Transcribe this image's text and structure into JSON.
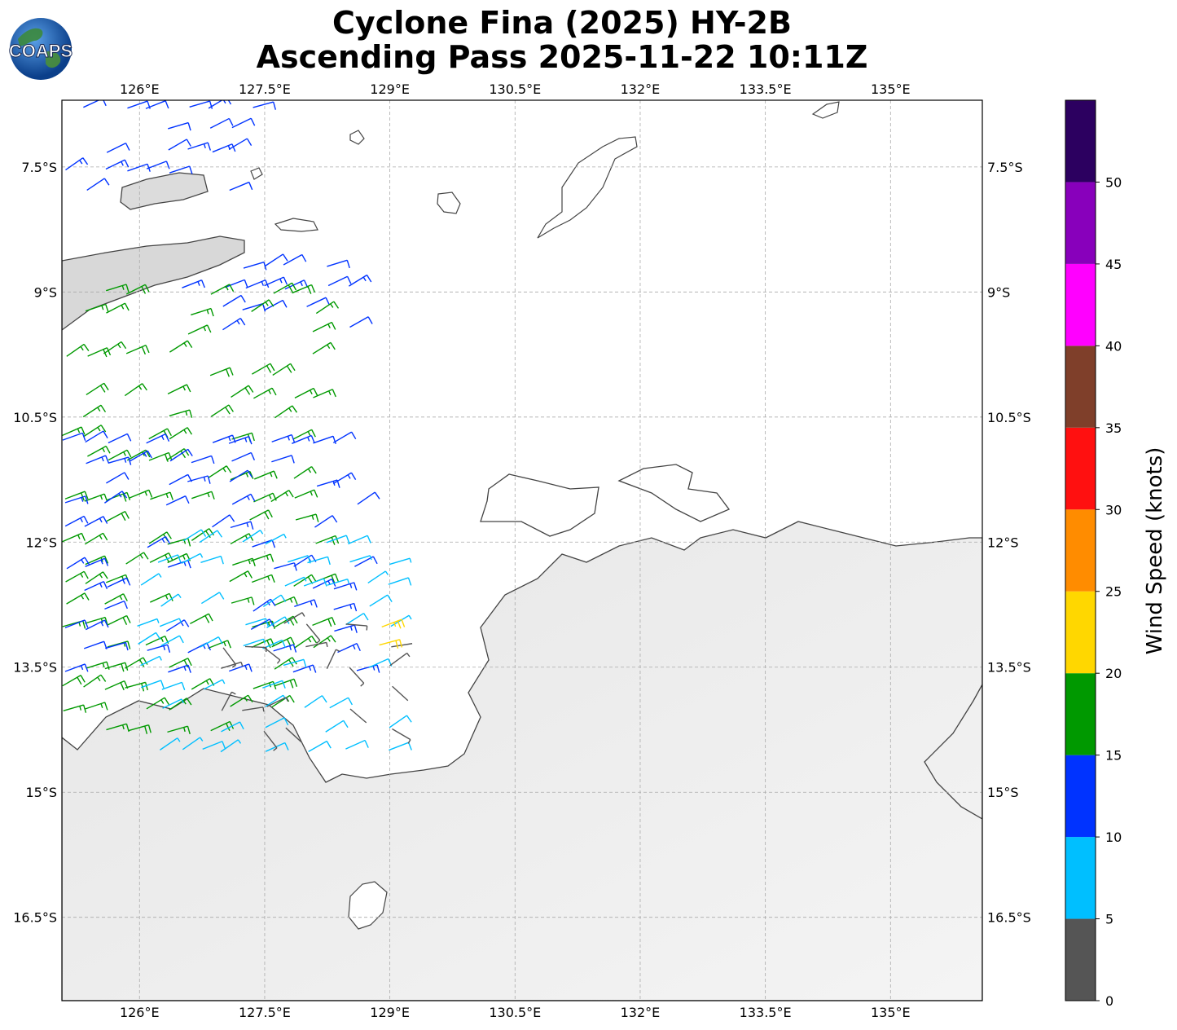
{
  "title_line1": "Cyclone Fina (2025) HY-2B",
  "title_line2": "Ascending Pass 2025-11-22 10:11Z",
  "logo_text": "COAPS",
  "map": {
    "lon_ticks": [
      "126°E",
      "127.5°E",
      "129°E",
      "130.5°E",
      "132°E",
      "133.5°E",
      "135°E"
    ],
    "lat_ticks": [
      "7.5°S",
      "9°S",
      "10.5°S",
      "12°S",
      "13.5°S",
      "15°S",
      "16.5°S"
    ],
    "lon_values": [
      126,
      127.5,
      129,
      130.5,
      132,
      133.5,
      135
    ],
    "lat_values": [
      -7.5,
      -9,
      -10.5,
      -12,
      -13.5,
      -15,
      -16.5
    ],
    "extent": {
      "lon_min": 125.07,
      "lon_max": 136.1,
      "lat_min": -17.5,
      "lat_max": -6.7
    }
  },
  "colorbar": {
    "label": "Wind Speed (knots)",
    "ticks": [
      "0",
      "5",
      "10",
      "15",
      "20",
      "25",
      "30",
      "35",
      "40",
      "45",
      "50"
    ],
    "colors": [
      "#555555",
      "#00bfff",
      "#0033ff",
      "#009900",
      "#ffd700",
      "#ff8c00",
      "#ff1010",
      "#7f3f2a",
      "#ff00ff",
      "#8800bb",
      "#2c0060"
    ]
  },
  "chart_data": {
    "type": "wind_barbs",
    "units": "knots",
    "speed_bins": [
      0,
      5,
      10,
      15,
      20,
      25,
      30,
      35,
      40,
      45,
      50,
      55
    ],
    "regions": [
      {
        "speed_kt": 12,
        "lon_range": [
          125.1,
          127.5
        ],
        "lat_range": [
          -6.8,
          -8.0
        ]
      },
      {
        "speed_kt": 12,
        "lon_range": [
          126.0,
          128.5
        ],
        "lat_range": [
          -8.7,
          -9.5
        ]
      },
      {
        "speed_kt": 17,
        "lon_range": [
          125.1,
          128.3
        ],
        "lat_range": [
          -9.0,
          -14.3
        ]
      },
      {
        "speed_kt": 13,
        "lon_range": [
          125.1,
          128.6
        ],
        "lat_range": [
          -10.8,
          -13.6
        ]
      },
      {
        "speed_kt": 8,
        "lon_range": [
          126.0,
          129.0
        ],
        "lat_range": [
          -12.0,
          -14.6
        ]
      },
      {
        "speed_kt": 3,
        "lon_range": [
          127.0,
          129.0
        ],
        "lat_range": [
          -13.0,
          -14.3
        ]
      },
      {
        "speed_kt": 22,
        "lon_range": [
          128.9,
          129.1
        ],
        "lat_range": [
          -13.0,
          -13.3
        ]
      }
    ]
  }
}
